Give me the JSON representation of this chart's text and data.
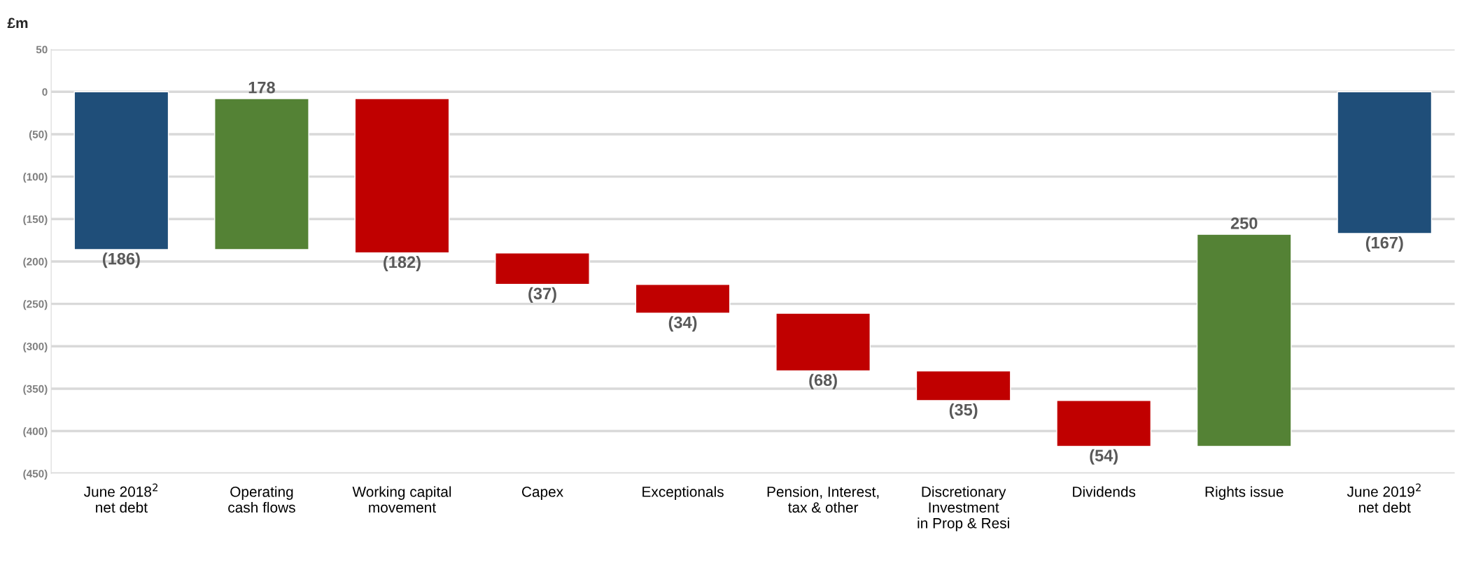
{
  "chart_data": {
    "type": "bar",
    "ylabel": "£m",
    "categories": [
      "June 2018$^{2}$\nnet debt",
      "Operating\ncash flows",
      "Working capital\nmovement",
      "Capex",
      "Exceptionals",
      "Pension, Interest,\ntax & other",
      "Discretionary\nInvestment\nin Prop & Resi",
      "Dividends",
      "Rights issue",
      "June 2019$^{2}$\nnet debt"
    ],
    "base": [
      0,
      -186,
      -8,
      -190,
      -227,
      -261,
      -329,
      -364,
      -418,
      0
    ],
    "values": [
      -186,
      178,
      -182,
      -37,
      -34,
      -68,
      -35,
      -54,
      250,
      -167
    ],
    "colors": [
      "#1f4e79",
      "#548235",
      "#c00000",
      "#c00000",
      "#c00000",
      "#c00000",
      "#c00000",
      "#c00000",
      "#548235",
      "#1f4e79"
    ],
    "value_labels": [
      "(186)",
      "178",
      "(182)",
      "(37)",
      "(34)",
      "(68)",
      "(35)",
      "(54)",
      "250",
      "(167)"
    ],
    "ylim": [
      -450,
      50
    ],
    "yticks": [
      50,
      0,
      {
        "value": -50,
        "label": "(50)"
      },
      {
        "value": -100,
        "label": "(100)"
      },
      {
        "value": -150,
        "label": "(150)"
      },
      {
        "value": -200,
        "label": "(200)"
      },
      {
        "value": -250,
        "label": "(250)"
      },
      {
        "value": -300,
        "label": "(300)"
      },
      {
        "value": -350,
        "label": "(350)"
      },
      {
        "value": -400,
        "label": "(400)"
      },
      {
        "value": -450,
        "label": "(450)"
      }
    ],
    "grid": "y",
    "legend": false
  }
}
